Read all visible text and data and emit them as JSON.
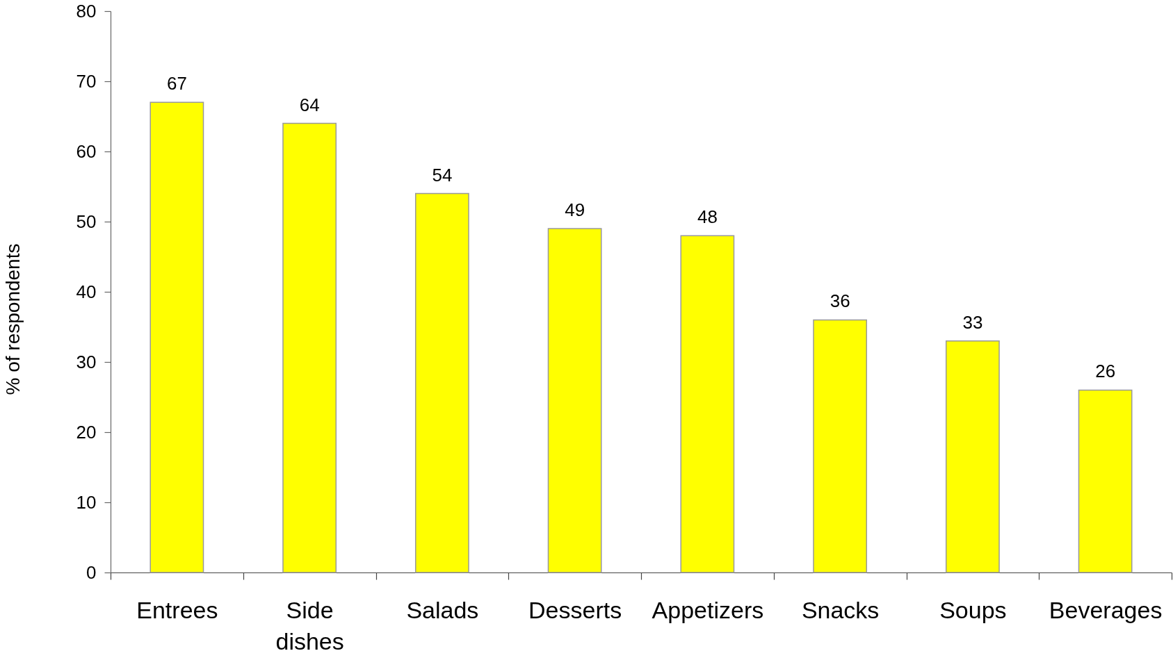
{
  "chart_data": {
    "type": "bar",
    "ylabel": "% of respondents",
    "categories": [
      "Entrees",
      "Side dishes",
      "Salads",
      "Desserts",
      "Appetizers",
      "Snacks",
      "Soups",
      "Beverages"
    ],
    "values": [
      67,
      64,
      54,
      49,
      48,
      36,
      33,
      26
    ],
    "color": "#ffff00",
    "ylim": [
      0,
      80
    ],
    "yticks": [
      0,
      10,
      20,
      30,
      40,
      50,
      60,
      70,
      80
    ],
    "data_labels": true
  }
}
